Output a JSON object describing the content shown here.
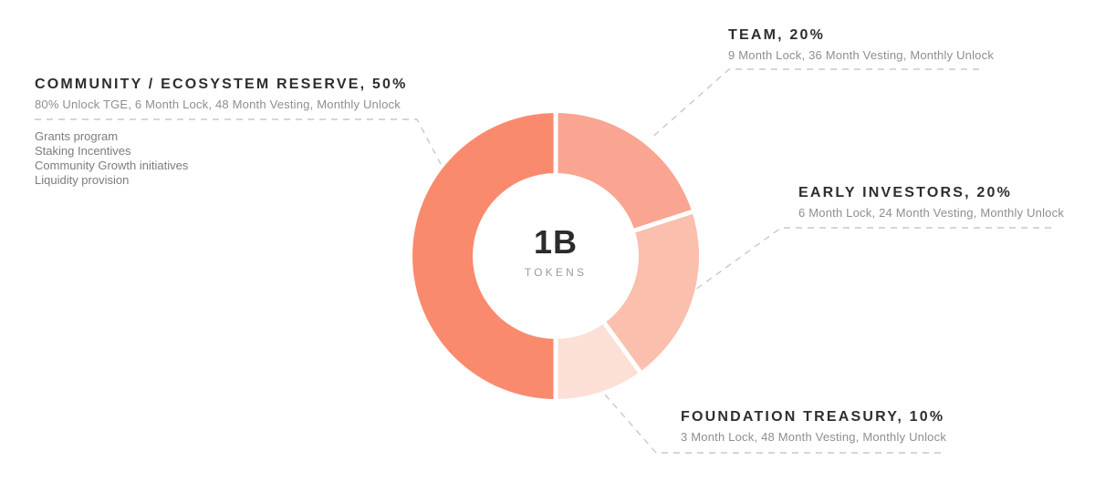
{
  "chart_data": {
    "type": "pie",
    "donut": true,
    "title": "",
    "categories": [
      "Team",
      "Early Investors",
      "Foundation Treasury",
      "Community / Ecosystem Reserve"
    ],
    "values": [
      20,
      20,
      10,
      50
    ],
    "unit": "%",
    "total_tokens": "1B",
    "colors": [
      "#FAA492",
      "#FBBFAE",
      "#FCDFD6",
      "#FA8A6E"
    ],
    "start_angle_deg": 0,
    "direction": "clockwise",
    "legend_position": "outside-callouts",
    "center_label": {
      "value": "1B",
      "caption": "TOKENS"
    }
  },
  "labels": {
    "team": {
      "title": "TEAM, 20%",
      "subtitle": "9 Month Lock, 36 Month Vesting, Monthly Unlock"
    },
    "early_investors": {
      "title": "EARLY INVESTORS, 20%",
      "subtitle": "6 Month Lock, 24 Month Vesting, Monthly Unlock"
    },
    "foundation_treasury": {
      "title": "FOUNDATION TREASURY, 10%",
      "subtitle": "3 Month Lock, 48 Month Vesting, Monthly Unlock"
    },
    "community": {
      "title": "COMMUNITY / ECOSYSTEM RESERVE, 50%",
      "subtitle": "80% Unlock TGE, 6 Month Lock, 48 Month Vesting, Monthly Unlock",
      "items": [
        "Grants program",
        "Staking Incentives",
        "Community Growth initiatives",
        "Liquidity provision"
      ]
    }
  }
}
